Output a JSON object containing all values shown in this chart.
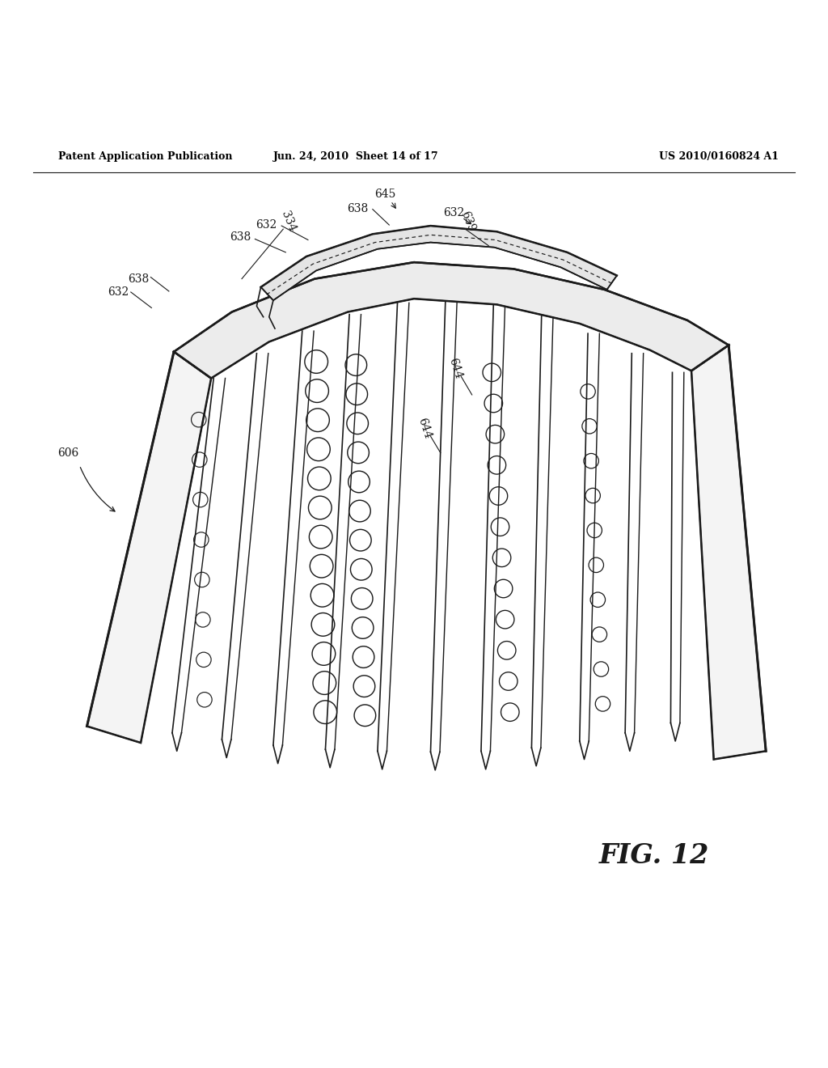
{
  "bg_color": "#ffffff",
  "header_left": "Patent Application Publication",
  "header_center": "Jun. 24, 2010  Sheet 14 of 17",
  "header_right": "US 2010/0160824 A1",
  "fig_label": "FIG. 12",
  "line_color": "#1a1a1a",
  "lw_main": 1.2,
  "lw_thick": 1.8
}
